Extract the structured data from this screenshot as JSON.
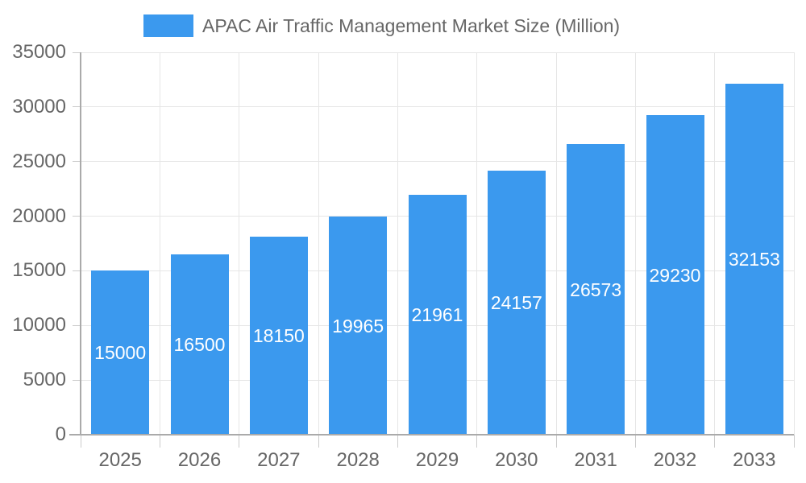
{
  "chart_data": {
    "type": "bar",
    "title": "APAC Air Traffic Management Market Size (Million)",
    "categories": [
      "2025",
      "2026",
      "2027",
      "2028",
      "2029",
      "2030",
      "2031",
      "2032",
      "2033"
    ],
    "values": [
      15000,
      16500,
      18150,
      19965,
      21961,
      24157,
      26573,
      29230,
      32153
    ],
    "xlabel": "",
    "ylabel": "",
    "ylim": [
      0,
      35000
    ],
    "yticks": [
      0,
      5000,
      10000,
      15000,
      20000,
      25000,
      30000,
      35000
    ],
    "grid": true,
    "legend_position": "top",
    "value_labels_position": "inside-middle",
    "colors": {
      "bar": "#3B99EE",
      "axis_text": "#666666",
      "grid_line": "#e6e6e6",
      "axis_line": "#aaaaaa",
      "tick_line": "#cccccc",
      "value_label": "#ffffff",
      "background": "#ffffff"
    }
  }
}
